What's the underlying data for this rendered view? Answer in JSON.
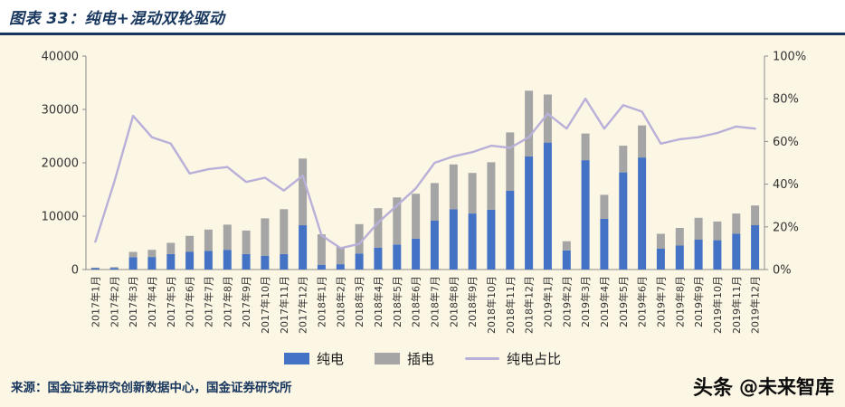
{
  "header": {
    "title": "图表 33：纯电+混动双轮驱动"
  },
  "footer": {
    "source": "来源：国金证券研究创新数据中心，国金证券研究所",
    "watermark_brand": "头条",
    "watermark_handle": "@未来智库"
  },
  "colors": {
    "title_navy": "#17365d",
    "pure_blue": "#4472c4",
    "plug_gray": "#a5a5a5",
    "share_purple": "#b9b0d9",
    "axis_line": "#8c8c8c",
    "tick_text": "#333333",
    "background_cream": "#fcf6e5"
  },
  "chart_data": {
    "type": "bar",
    "subtype": "stacked-bars-with-line",
    "title": "图表 33：纯电+混动双轮驱动",
    "grid": false,
    "legend_position": "bottom",
    "categories": [
      "2017年1月",
      "2017年2月",
      "2017年3月",
      "2017年4月",
      "2017年5月",
      "2017年6月",
      "2017年7月",
      "2017年8月",
      "2017年9月",
      "2017年10月",
      "2017年11月",
      "2017年12月",
      "2018年1月",
      "2018年2月",
      "2018年3月",
      "2018年4月",
      "2018年5月",
      "2018年6月",
      "2018年7月",
      "2018年8月",
      "2018年9月",
      "2018年10月",
      "2018年11月",
      "2018年12月",
      "2019年1月",
      "2019年2月",
      "2019年3月",
      "2019年4月",
      "2019年5月",
      "2019年6月",
      "2019年7月",
      "2019年8月",
      "2019年9月",
      "2019年10月",
      "2019年11月",
      "2019年12月"
    ],
    "series": [
      {
        "key": "pure",
        "name": "纯电",
        "type": "bar",
        "stack": true,
        "color": "#4472c4",
        "values": [
          250,
          300,
          2300,
          2350,
          2900,
          3300,
          3500,
          3700,
          2900,
          2600,
          2900,
          8300,
          900,
          1000,
          3000,
          4100,
          4700,
          5800,
          9200,
          11300,
          10500,
          11200,
          14800,
          21200,
          23800,
          3600,
          20500,
          9500,
          18200,
          21000,
          3900,
          4500,
          5600,
          5500,
          6700,
          8300
        ]
      },
      {
        "key": "plug",
        "name": "插电",
        "type": "bar",
        "stack": true,
        "color": "#a5a5a5",
        "values": [
          100,
          150,
          1000,
          1350,
          2100,
          3000,
          4000,
          4700,
          4400,
          7000,
          8400,
          12500,
          5700,
          3200,
          5500,
          7400,
          8800,
          8400,
          7000,
          8400,
          7600,
          8900,
          10900,
          12300,
          9000,
          1700,
          5000,
          4500,
          5000,
          6000,
          2800,
          3300,
          4100,
          3500,
          3800,
          3700
        ]
      },
      {
        "key": "share",
        "name": "纯电占比",
        "type": "line",
        "axis": "right",
        "color": "#b9b0d9",
        "values": [
          13,
          41,
          72,
          62,
          59,
          45,
          47,
          48,
          41,
          43,
          37,
          44,
          16,
          10,
          12,
          22,
          30,
          38,
          50,
          53,
          55,
          58,
          57,
          62,
          73,
          66,
          80,
          66,
          77,
          74,
          59,
          61,
          62,
          64,
          67,
          66
        ]
      }
    ],
    "left_axis": {
      "min": 0,
      "max": 40000,
      "ticks": [
        0,
        10000,
        20000,
        30000,
        40000
      ],
      "tick_labels": [
        "0",
        "10000",
        "20000",
        "30000",
        "40000"
      ]
    },
    "right_axis": {
      "min": 0,
      "max": 100,
      "ticks": [
        0,
        20,
        40,
        60,
        80,
        100
      ],
      "tick_labels": [
        "0%",
        "20%",
        "40%",
        "60%",
        "80%",
        "100%"
      ]
    }
  }
}
